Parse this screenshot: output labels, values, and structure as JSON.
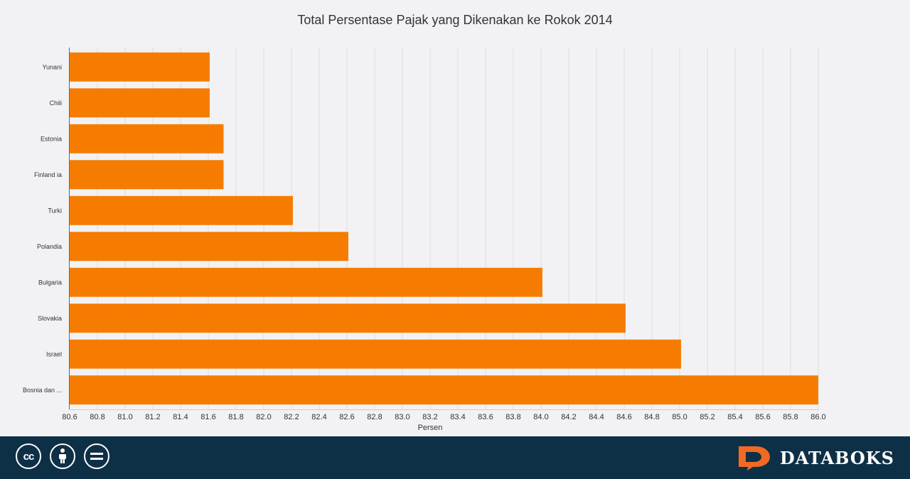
{
  "chart_data": {
    "type": "bar",
    "orientation": "horizontal",
    "title": "Total Persentase Pajak yang Dikenakan ke Rokok 2014",
    "xlabel": "Persen",
    "ylabel": "",
    "xlim": [
      80.6,
      86.0
    ],
    "ticks": [
      "80.6",
      "80.8",
      "81.0",
      "81.2",
      "81.4",
      "81.6",
      "81.8",
      "82.0",
      "82.2",
      "82.4",
      "82.6",
      "82.8",
      "83.0",
      "83.2",
      "83.4",
      "83.6",
      "83.8",
      "84.0",
      "84.2",
      "84.4",
      "84.6",
      "84.8",
      "85.0",
      "85.2",
      "85.4",
      "85.6",
      "85.8",
      "86.0"
    ],
    "categories": [
      "Yunani",
      "Chili",
      "Estonia",
      "Finland ia",
      "Turki",
      "Polandia",
      "Bulgaria",
      "Slovakia",
      "Israel",
      "Bosnia dan ..."
    ],
    "values": [
      81.61,
      81.61,
      81.71,
      81.71,
      82.21,
      82.61,
      84.01,
      84.61,
      85.01,
      86.0
    ],
    "bar_color": "#f57c00",
    "grid": true
  },
  "footer": {
    "brand": "DATABOKS",
    "icons": [
      "cc-icon",
      "by-icon",
      "nd-icon"
    ],
    "cc_text": "cc",
    "background": "#0e3047",
    "brand_color": "#f06a23"
  }
}
